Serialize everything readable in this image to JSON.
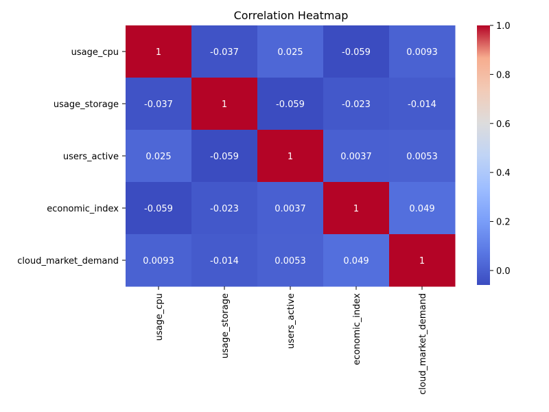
{
  "chart_data": {
    "type": "heatmap",
    "title": "Correlation Heatmap",
    "xlabel": "",
    "ylabel": "",
    "rows": [
      "usage_cpu",
      "usage_storage",
      "users_active",
      "economic_index",
      "cloud_market_demand"
    ],
    "columns": [
      "usage_cpu",
      "usage_storage",
      "users_active",
      "economic_index",
      "cloud_market_demand"
    ],
    "values": [
      [
        1,
        -0.037,
        0.025,
        -0.059,
        0.0093
      ],
      [
        -0.037,
        1,
        -0.059,
        -0.023,
        -0.014
      ],
      [
        0.025,
        -0.059,
        1,
        0.0037,
        0.0053
      ],
      [
        -0.059,
        -0.023,
        0.0037,
        1,
        0.049
      ],
      [
        0.0093,
        -0.014,
        0.0053,
        0.049,
        1
      ]
    ],
    "cell_labels": [
      [
        "1",
        "-0.037",
        "0.025",
        "-0.059",
        "0.0093"
      ],
      [
        "-0.037",
        "1",
        "-0.059",
        "-0.023",
        "-0.014"
      ],
      [
        "0.025",
        "-0.059",
        "1",
        "0.0037",
        "0.0053"
      ],
      [
        "-0.059",
        "-0.023",
        "0.0037",
        "1",
        "0.049"
      ],
      [
        "0.0093",
        "-0.014",
        "0.0053",
        "0.049",
        "1"
      ]
    ],
    "colormap": "coolwarm",
    "color_range": [
      -0.059,
      1.0
    ],
    "colorbar": {
      "ticks": [
        0.0,
        0.2,
        0.4,
        0.6,
        0.8,
        1.0
      ],
      "tick_labels": [
        "0.0",
        "0.2",
        "0.4",
        "0.6",
        "0.8",
        "1.0"
      ]
    },
    "grid": false
  }
}
